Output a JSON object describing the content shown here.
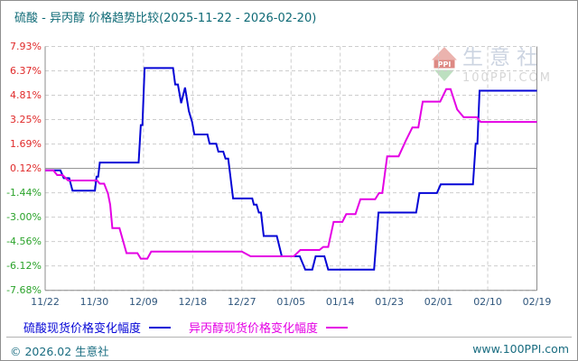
{
  "title": "硫酸 - 异丙醇 价格趋势比较(2025-11-22 - 2026-02-20)",
  "watermark": {
    "logo_text": "PPI",
    "brand": "生意社",
    "site": "100PPI.COM"
  },
  "legend": [
    {
      "label": "硫酸现货价格变化幅度",
      "color": "#0505d6"
    },
    {
      "label": "异丙醇现货价格变化幅度",
      "color": "#e400e4"
    }
  ],
  "footer": {
    "copyright": "© 2026.02 生意社",
    "site": "www.100PPI.com"
  },
  "colors": {
    "title_text": "#0e6a76",
    "y_positive": "#e02a2a",
    "y_negative": "#2ba32b",
    "x_label": "#2f567c",
    "grid_dashed": "#cdcdcd",
    "grid_solid": "#8c8c8c",
    "plot_border": "#8c8c8c"
  },
  "chart_data": {
    "type": "line",
    "title": "硫酸 - 异丙醇 价格趋势比较(2025-11-22 - 2026-02-20)",
    "date_range": {
      "start": "2025-11-22",
      "end": "2026-02-20"
    },
    "x_axis": {
      "tick_labels": [
        "11/22",
        "11/30",
        "12/09",
        "12/18",
        "12/27",
        "01/05",
        "01/14",
        "01/23",
        "02/01",
        "02/10",
        "02/19"
      ],
      "unit": "day offset from 2025-11-22",
      "range_days": [
        0,
        90
      ]
    },
    "y_axis": {
      "tick_labels": [
        "7.93%",
        "6.37%",
        "4.81%",
        "3.25%",
        "1.69%",
        "0.12%",
        "-1.44%",
        "-3.00%",
        "-4.56%",
        "-6.12%",
        "-7.68%"
      ],
      "values": [
        7.93,
        6.37,
        4.81,
        3.25,
        1.69,
        0.12,
        -1.44,
        -3.0,
        -4.56,
        -6.12,
        -7.68
      ],
      "unit": "%",
      "zero_line": true
    },
    "grid": "dashed",
    "legend_position": "bottom-left",
    "series": [
      {
        "name": "硫酸现货价格变化幅度",
        "color": "#0505d6",
        "points": [
          [
            0,
            0
          ],
          [
            2.8,
            0
          ],
          [
            3.4,
            -0.5
          ],
          [
            4.4,
            -0.5
          ],
          [
            5,
            -1.3
          ],
          [
            9.1,
            -1.3
          ],
          [
            9.4,
            -0.4
          ],
          [
            9.7,
            -0.4
          ],
          [
            10,
            0.5
          ],
          [
            17.1,
            0.5
          ],
          [
            17.5,
            2.9
          ],
          [
            17.8,
            2.9
          ],
          [
            18.2,
            6.55
          ],
          [
            23.4,
            6.55
          ],
          [
            23.8,
            5.5
          ],
          [
            24.3,
            5.5
          ],
          [
            24.9,
            4.3
          ],
          [
            25.6,
            5.3
          ],
          [
            26.3,
            3.8
          ],
          [
            26.9,
            3.1
          ],
          [
            27.3,
            2.3
          ],
          [
            29.7,
            2.3
          ],
          [
            30.1,
            1.7
          ],
          [
            31.3,
            1.7
          ],
          [
            31.7,
            1.2
          ],
          [
            32.6,
            1.2
          ],
          [
            33,
            0.75
          ],
          [
            33.5,
            0.75
          ],
          [
            34.4,
            -1.8
          ],
          [
            37.9,
            -1.8
          ],
          [
            38.2,
            -2.2
          ],
          [
            38.7,
            -2.2
          ],
          [
            39.1,
            -2.7
          ],
          [
            39.5,
            -2.7
          ],
          [
            40,
            -4.2
          ],
          [
            42.4,
            -4.2
          ],
          [
            43.3,
            -5.5
          ],
          [
            46.6,
            -5.5
          ],
          [
            47.6,
            -6.35
          ],
          [
            48.9,
            -6.35
          ],
          [
            49.5,
            -5.5
          ],
          [
            51.1,
            -5.5
          ],
          [
            51.8,
            -6.35
          ],
          [
            60.2,
            -6.35
          ],
          [
            61,
            -2.7
          ],
          [
            67.9,
            -2.7
          ],
          [
            68.5,
            -1.45
          ],
          [
            71.7,
            -1.45
          ],
          [
            72.4,
            -0.9
          ],
          [
            78.3,
            -0.9
          ],
          [
            78.8,
            1.7
          ],
          [
            79.1,
            1.7
          ],
          [
            79.5,
            5.1
          ],
          [
            90,
            5.1
          ]
        ]
      },
      {
        "name": "异丙醇现货价格变化幅度",
        "color": "#e400e4",
        "points": [
          [
            0,
            0
          ],
          [
            1.5,
            0
          ],
          [
            2.2,
            -0.3
          ],
          [
            3.2,
            -0.3
          ],
          [
            4.2,
            -0.65
          ],
          [
            9.5,
            -0.65
          ],
          [
            10,
            -0.85
          ],
          [
            10.8,
            -0.85
          ],
          [
            11.5,
            -1.5
          ],
          [
            11.9,
            -2.2
          ],
          [
            12.3,
            -3.7
          ],
          [
            13.6,
            -3.7
          ],
          [
            14.9,
            -5.3
          ],
          [
            16.9,
            -5.3
          ],
          [
            17.5,
            -5.65
          ],
          [
            18.7,
            -5.65
          ],
          [
            19.4,
            -5.2
          ],
          [
            36,
            -5.2
          ],
          [
            37.6,
            -5.5
          ],
          [
            45.5,
            -5.5
          ],
          [
            46.7,
            -5.1
          ],
          [
            50.2,
            -5.1
          ],
          [
            50.9,
            -4.9
          ],
          [
            51.8,
            -4.9
          ],
          [
            52.8,
            -3.3
          ],
          [
            54.4,
            -3.3
          ],
          [
            55.1,
            -2.8
          ],
          [
            56.8,
            -2.8
          ],
          [
            57.7,
            -1.85
          ],
          [
            60.4,
            -1.85
          ],
          [
            61.1,
            -1.45
          ],
          [
            61.7,
            -1.45
          ],
          [
            62.6,
            0.9
          ],
          [
            64.7,
            0.9
          ],
          [
            66,
            1.9
          ],
          [
            67.2,
            2.75
          ],
          [
            68.3,
            2.75
          ],
          [
            69.1,
            4.4
          ],
          [
            72.3,
            4.4
          ],
          [
            73.4,
            5.2
          ],
          [
            74.2,
            5.2
          ],
          [
            75.4,
            3.9
          ],
          [
            76.6,
            3.4
          ],
          [
            79,
            3.4
          ],
          [
            79.7,
            3.1
          ],
          [
            90,
            3.1
          ]
        ]
      }
    ]
  }
}
